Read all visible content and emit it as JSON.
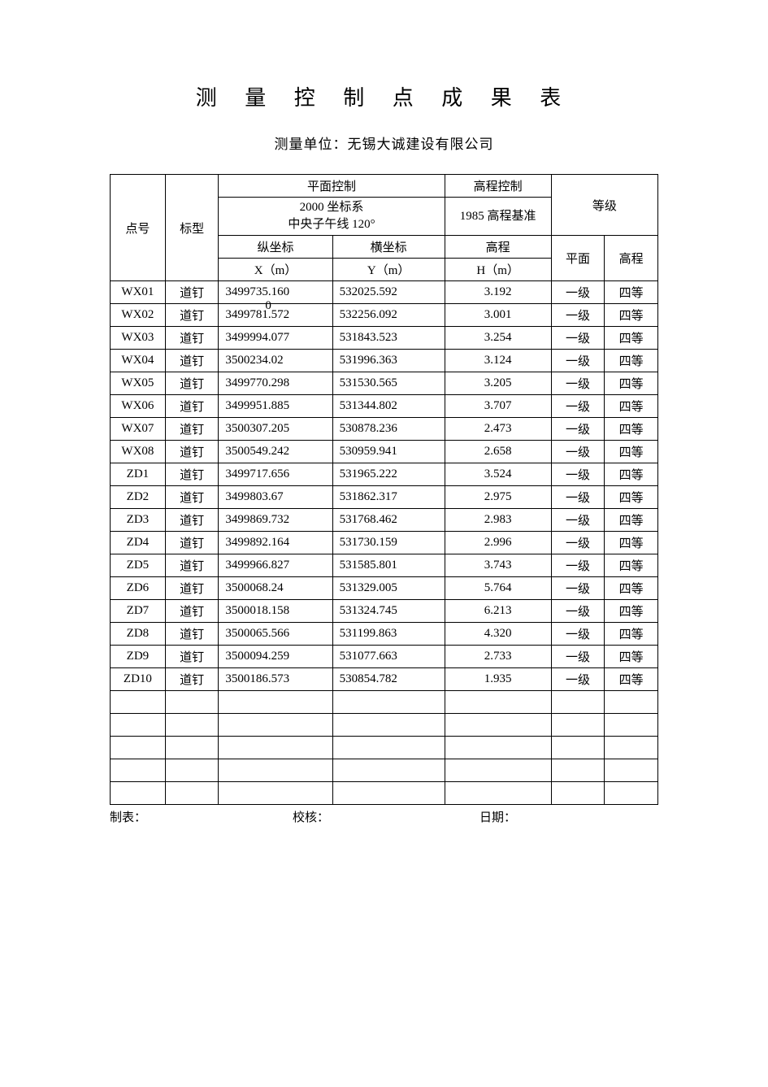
{
  "title": "测 量 控 制 点 成 果 表",
  "subtitle": "测量单位：无锡大诚建设有限公司",
  "headers": {
    "point_id": "点号",
    "type": "标型",
    "plane_control": "平面控制",
    "elev_control": "高程控制",
    "grade": "等级",
    "coord_sys_l1": "2000 坐标系",
    "coord_sys_l2": "中央子午线 120°",
    "elev_basis": "1985 高程基准",
    "lon": "纵坐标",
    "lat": "横坐标",
    "elev": "高程",
    "x_unit": "X（m）",
    "y_unit": "Y（m）",
    "h_unit": "H（m）",
    "plane": "平面",
    "elev_g": "高程"
  },
  "overlay_zero": "0",
  "rows": [
    {
      "id": "WX01",
      "type": "道钉",
      "x": "3499735.160",
      "y": "532025.592",
      "h": "3.192",
      "p": "一级",
      "e": "四等"
    },
    {
      "id": "WX02",
      "type": "道钉",
      "x": "3499781.572",
      "y": "532256.092",
      "h": "3.001",
      "p": "一级",
      "e": "四等"
    },
    {
      "id": "WX03",
      "type": "道钉",
      "x": "3499994.077",
      "y": "531843.523",
      "h": "3.254",
      "p": "一级",
      "e": "四等"
    },
    {
      "id": "WX04",
      "type": "道钉",
      "x": "3500234.02",
      "y": "531996.363",
      "h": "3.124",
      "p": "一级",
      "e": "四等"
    },
    {
      "id": "WX05",
      "type": "道钉",
      "x": "3499770.298",
      "y": "531530.565",
      "h": "3.205",
      "p": "一级",
      "e": "四等"
    },
    {
      "id": "WX06",
      "type": "道钉",
      "x": "3499951.885",
      "y": "531344.802",
      "h": "3.707",
      "p": "一级",
      "e": "四等"
    },
    {
      "id": "WX07",
      "type": "道钉",
      "x": "3500307.205",
      "y": "530878.236",
      "h": "2.473",
      "p": "一级",
      "e": "四等"
    },
    {
      "id": "WX08",
      "type": "道钉",
      "x": "3500549.242",
      "y": "530959.941",
      "h": "2.658",
      "p": "一级",
      "e": "四等"
    },
    {
      "id": "ZD1",
      "type": "道钉",
      "x": "3499717.656",
      "y": "531965.222",
      "h": "3.524",
      "p": "一级",
      "e": "四等"
    },
    {
      "id": "ZD2",
      "type": "道钉",
      "x": "3499803.67",
      "y": "531862.317",
      "h": "2.975",
      "p": "一级",
      "e": "四等"
    },
    {
      "id": "ZD3",
      "type": "道钉",
      "x": "3499869.732",
      "y": "531768.462",
      "h": "2.983",
      "p": "一级",
      "e": "四等"
    },
    {
      "id": "ZD4",
      "type": "道钉",
      "x": "3499892.164",
      "y": "531730.159",
      "h": "2.996",
      "p": "一级",
      "e": "四等"
    },
    {
      "id": "ZD5",
      "type": "道钉",
      "x": "3499966.827",
      "y": "531585.801",
      "h": "3.743",
      "p": "一级",
      "e": "四等"
    },
    {
      "id": "ZD6",
      "type": "道钉",
      "x": "3500068.24",
      "y": "531329.005",
      "h": "5.764",
      "p": "一级",
      "e": "四等"
    },
    {
      "id": "ZD7",
      "type": "道钉",
      "x": "3500018.158",
      "y": "531324.745",
      "h": "6.213",
      "p": "一级",
      "e": "四等"
    },
    {
      "id": "ZD8",
      "type": "道钉",
      "x": "3500065.566",
      "y": "531199.863",
      "h": "4.320",
      "p": "一级",
      "e": "四等"
    },
    {
      "id": "ZD9",
      "type": "道钉",
      "x": "3500094.259",
      "y": "531077.663",
      "h": "2.733",
      "p": "一级",
      "e": "四等"
    },
    {
      "id": "ZD10",
      "type": "道钉",
      "x": "3500186.573",
      "y": "530854.782",
      "h": "1.935",
      "p": "一级",
      "e": "四等"
    }
  ],
  "empty_rows": 5,
  "footer": {
    "maker": "制表：",
    "checker": "校核：",
    "date": "日期："
  }
}
